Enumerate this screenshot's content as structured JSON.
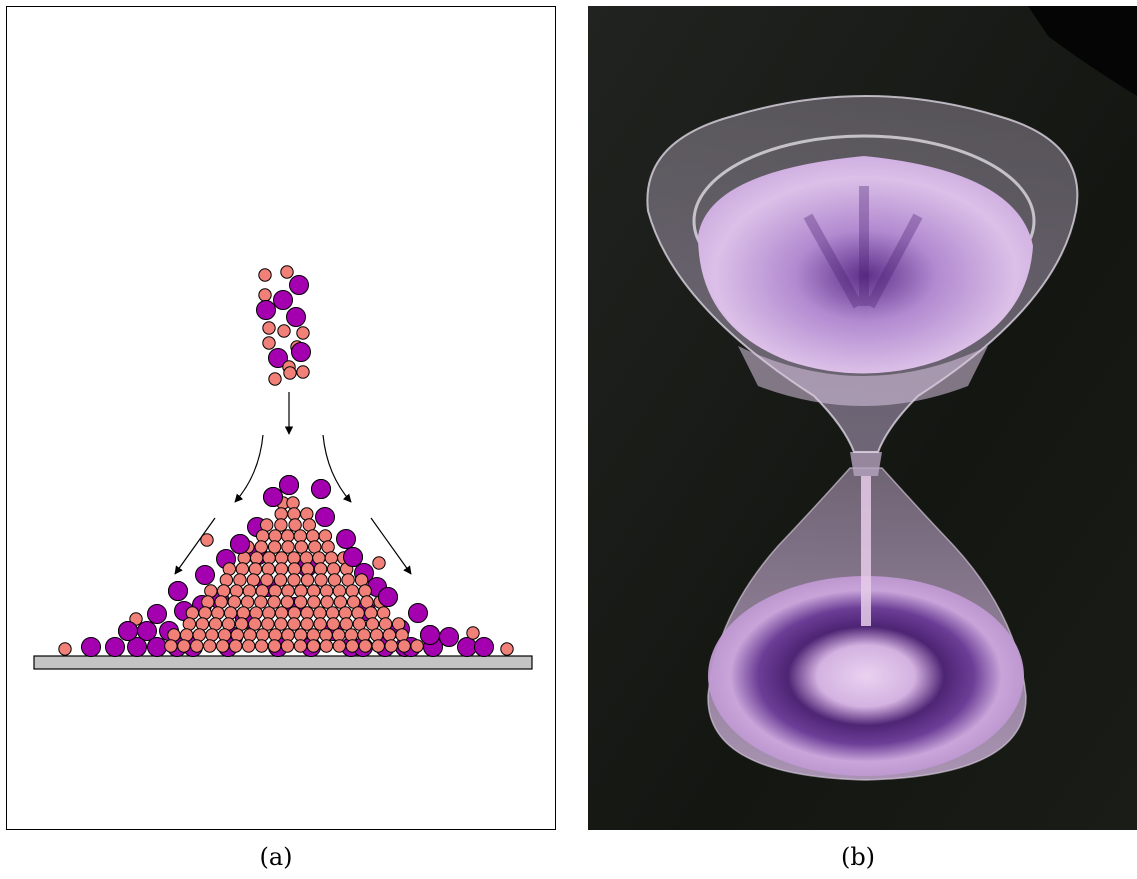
{
  "figure": {
    "panels": [
      {
        "id": "a",
        "caption": "(a)",
        "kind": "schematic-diagram"
      },
      {
        "id": "b",
        "caption": "(b)",
        "kind": "photograph"
      }
    ]
  },
  "colors": {
    "large_grain": "#a400b0",
    "small_grain": "#f08078",
    "surface": "#c4c4c4",
    "photo_background": "#151714",
    "sand_light": "#d8b4e4",
    "sand_dark": "#5a2c80"
  },
  "icons": {
    "flow_arrows": "curved-arrow-icon",
    "grain": "circle-glyph"
  }
}
